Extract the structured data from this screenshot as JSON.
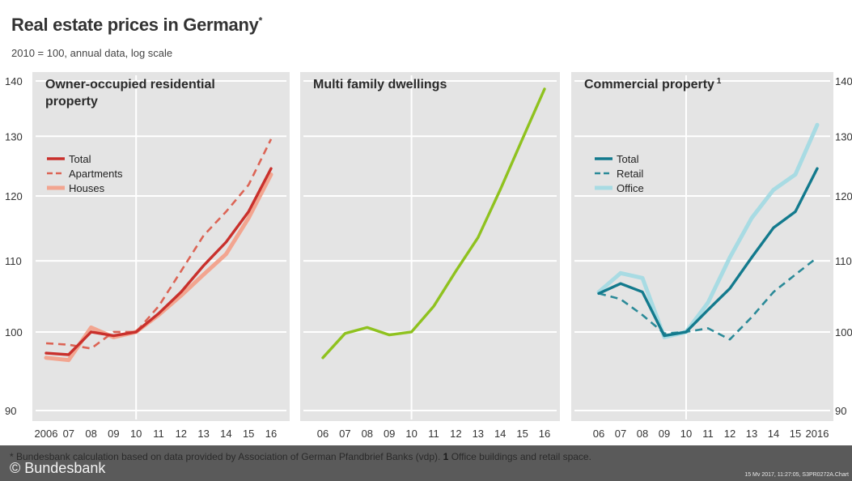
{
  "header": {
    "title": "Real estate prices in Germany",
    "title_mark": "*",
    "subtitle": "2010 = 100, annual data, log scale"
  },
  "footer": {
    "footnote_prefix": "* Bundesbank calculation based on data provided by Association of German Pfandbrief Banks (vdp).",
    "footnote_bold": "1",
    "footnote_suffix": "Office buildings and retail space.",
    "credit": "© Bundesbank",
    "stamp": "15 Mv 2017, 11:27:05, S3PR0272A.Chart"
  },
  "colors": {
    "background": "#ffffff",
    "panel_background": "#e4e4e4",
    "grid": "#ffffff",
    "footer": "#5a5a5a"
  },
  "chart_data": [
    {
      "type": "line",
      "title": "Owner-occupied residential property",
      "title_lines": [
        "Owner-occupied residential",
        "property"
      ],
      "y_scale": "log",
      "ylim": [
        90,
        140
      ],
      "yticks": [
        90,
        100,
        110,
        120,
        130,
        140
      ],
      "ytick_side": "left",
      "x": [
        2006,
        2007,
        2008,
        2009,
        2010,
        2011,
        2012,
        2013,
        2014,
        2015,
        2016
      ],
      "xtick_labels": [
        "2006",
        "07",
        "08",
        "09",
        "10",
        "11",
        "12",
        "13",
        "14",
        "15",
        "16"
      ],
      "legend_position": "top-left",
      "series": [
        {
          "name": "Houses",
          "style": "solid-light",
          "color": "#f2a590",
          "values": [
            96.6,
            96.3,
            100.6,
            99.3,
            100.0,
            102.3,
            105.0,
            108.0,
            111.0,
            116.5,
            123.5
          ]
        },
        {
          "name": "Apartments",
          "style": "dashed",
          "color": "#dc6455",
          "values": [
            98.5,
            98.3,
            97.8,
            100.0,
            100.0,
            103.5,
            108.5,
            113.8,
            117.5,
            121.8,
            129.5
          ]
        },
        {
          "name": "Total",
          "style": "solid",
          "color": "#c9302c",
          "values": [
            97.2,
            97.0,
            100.0,
            99.5,
            100.0,
            102.5,
            105.5,
            109.3,
            112.8,
            117.5,
            124.5
          ]
        }
      ]
    },
    {
      "type": "line",
      "title": "Multi family dwellings",
      "title_lines": [
        "Multi family dwellings"
      ],
      "y_scale": "log",
      "ylim": [
        90,
        140
      ],
      "yticks": [
        90,
        100,
        110,
        120,
        130,
        140
      ],
      "x": [
        2006,
        2007,
        2008,
        2009,
        2010,
        2011,
        2012,
        2013,
        2014,
        2015,
        2016
      ],
      "xtick_labels": [
        "06",
        "07",
        "08",
        "09",
        "10",
        "11",
        "12",
        "13",
        "14",
        "15",
        "16"
      ],
      "series": [
        {
          "style": "solid",
          "color": "#8fc21f",
          "values": [
            96.6,
            99.8,
            100.6,
            99.6,
            100.0,
            103.5,
            108.5,
            113.5,
            121.0,
            129.5,
            138.5
          ]
        }
      ]
    },
    {
      "type": "line",
      "title": "Commercial property",
      "title_mark": "1",
      "title_lines": [
        "Commercial property"
      ],
      "y_scale": "log",
      "ylim": [
        90,
        140
      ],
      "yticks": [
        90,
        100,
        110,
        120,
        130,
        140
      ],
      "ytick_side": "right",
      "x": [
        2006,
        2007,
        2008,
        2009,
        2010,
        2011,
        2012,
        2013,
        2014,
        2015,
        2016
      ],
      "xtick_labels": [
        "06",
        "07",
        "08",
        "09",
        "10",
        "11",
        "12",
        "13",
        "14",
        "15",
        "2016"
      ],
      "legend_position": "top-left",
      "series": [
        {
          "name": "Office",
          "style": "solid-light",
          "color": "#a8dbe3",
          "values": [
            105.5,
            108.2,
            107.5,
            99.3,
            100.0,
            104.0,
            110.5,
            116.5,
            121.0,
            123.5,
            132.0
          ]
        },
        {
          "name": "Retail",
          "style": "dashed",
          "color": "#2b8a98",
          "values": [
            105.3,
            104.5,
            102.3,
            99.8,
            100.0,
            100.5,
            99.0,
            102.0,
            105.5,
            108.0,
            110.5
          ]
        },
        {
          "name": "Total",
          "style": "solid",
          "color": "#137a8d",
          "values": [
            105.3,
            106.7,
            105.5,
            99.5,
            100.0,
            103.0,
            106.0,
            110.5,
            115.0,
            117.5,
            124.5
          ]
        }
      ]
    }
  ]
}
